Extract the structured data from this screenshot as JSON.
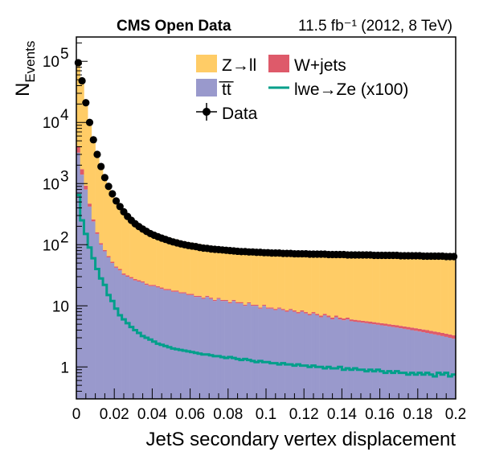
{
  "chart_data": {
    "type": "bar",
    "title_left": "CMS Open Data",
    "title_right": "11.5 fb⁻¹ (2012, 8 TeV)",
    "xlabel": "JetS secondary vertex displacement",
    "ylabel_main": "N",
    "ylabel_sub": "Events",
    "xlim": [
      0,
      0.2
    ],
    "ylim": [
      0.3,
      250000
    ],
    "yscale": "log",
    "x_ticks": [
      "0",
      "0.02",
      "0.04",
      "0.06",
      "0.08",
      "0.1",
      "0.12",
      "0.14",
      "0.16",
      "0.18",
      "0.2"
    ],
    "y_ticks": [
      {
        "value": 100000,
        "base": "10",
        "exp": "5"
      },
      {
        "value": 10000,
        "base": "10",
        "exp": "4"
      },
      {
        "value": 1000,
        "base": "10",
        "exp": "3"
      },
      {
        "value": 100,
        "base": "10",
        "exp": "2"
      },
      {
        "value": 10,
        "base": "10",
        "exp": ""
      },
      {
        "value": 1,
        "base": "1",
        "exp": ""
      }
    ],
    "n_bins": 100,
    "legend": {
      "placement": "top-right",
      "entries": [
        {
          "label": "Z→ll",
          "kind": "fill",
          "color": "#ffcc66"
        },
        {
          "label": "W+jets",
          "kind": "fill",
          "color": "#de5a6a"
        },
        {
          "label": "t̅t̅",
          "kind": "fill",
          "color": "#9999cc"
        },
        {
          "label": "lwe→Ze (x100)",
          "kind": "line",
          "color": "#009f8a"
        },
        {
          "label": "Data",
          "kind": "marker",
          "color": "#000000"
        }
      ]
    },
    "series": [
      {
        "name": "t̅t̅",
        "role": "stack",
        "color": "#9999cc",
        "values": [
          3200,
          1400,
          800,
          420,
          240,
          150,
          100,
          78,
          62,
          50,
          42,
          38,
          32,
          30,
          28,
          26,
          25,
          24,
          22,
          21,
          21,
          20,
          19,
          18,
          18,
          17,
          17,
          16,
          16,
          15,
          15,
          14,
          14,
          13,
          14,
          13,
          12,
          13,
          12,
          12,
          11,
          12,
          11,
          11,
          10,
          11,
          10,
          10,
          9,
          10,
          9,
          9,
          8.5,
          9,
          8.5,
          8,
          8.5,
          8,
          7.5,
          8,
          7.5,
          7,
          7.5,
          7,
          6.5,
          7,
          6.5,
          6,
          6.5,
          6,
          5.8,
          6,
          5.6,
          5.5,
          5.4,
          5.3,
          5.2,
          5.1,
          5,
          4.9,
          4.8,
          4.7,
          4.6,
          4.5,
          4.4,
          4.3,
          4.2,
          4.1,
          4,
          3.9,
          3.8,
          3.7,
          3.6,
          3.5,
          3.4,
          3.3,
          3.2,
          3.1,
          3,
          2.9
        ]
      },
      {
        "name": "W+jets",
        "role": "stack",
        "color": "#de5a6a",
        "values": [
          900,
          320,
          120,
          50,
          20,
          10,
          6,
          4,
          3,
          2.5,
          2,
          2,
          1.8,
          1.6,
          1.5,
          1.4,
          1.3,
          1.2,
          1.1,
          1,
          1,
          1,
          0.9,
          0.9,
          0.8,
          0.8,
          0.8,
          0.7,
          0.7,
          0.7,
          0.7,
          0.6,
          0.6,
          0.6,
          0.6,
          0.6,
          0.5,
          0.5,
          0.5,
          0.5,
          0.5,
          0.5,
          0.5,
          0.5,
          0.4,
          0.4,
          0.4,
          0.4,
          0.4,
          0.4,
          0.4,
          0.4,
          0.4,
          0.4,
          0.4,
          0.4,
          0.4,
          0.4,
          0.4,
          0.4,
          0.4,
          0.4,
          0.4,
          0.4,
          0.4,
          0.4,
          0.4,
          0.4,
          0.4,
          0.4,
          0.4,
          0.4,
          0.4,
          0.4,
          0.4,
          0.4,
          0.4,
          0.4,
          0.4,
          0.4,
          0.4,
          0.4,
          0.4,
          0.4,
          0.4,
          0.4,
          0.4,
          0.4,
          0.4,
          0.4,
          0.4,
          0.4,
          0.4,
          0.4,
          0.4,
          0.4,
          0.4,
          0.4,
          0.4,
          0.4
        ]
      },
      {
        "name": "Z→ll",
        "role": "stack",
        "color": "#ffcc66",
        "values": [
          85000,
          48000,
          20000,
          9500,
          5000,
          2900,
          1800,
          1200,
          860,
          640,
          500,
          400,
          330,
          280,
          240,
          210,
          190,
          172,
          158,
          146,
          138,
          130,
          124,
          118,
          112,
          108,
          104,
          100,
          97,
          94,
          92,
          90,
          88,
          86,
          84,
          82,
          81,
          80,
          79,
          78,
          77,
          76,
          75,
          74,
          74,
          73,
          73,
          72,
          72,
          71,
          71,
          70,
          70,
          70,
          69,
          69,
          69,
          68,
          68,
          68,
          68,
          67,
          67,
          67,
          67,
          67,
          66,
          66,
          66,
          66,
          66,
          65,
          65,
          65,
          65,
          65,
          65,
          65,
          64,
          64,
          64,
          64,
          64,
          64,
          64,
          63,
          63,
          63,
          63,
          63,
          63,
          62,
          62,
          62,
          62,
          62,
          62,
          61,
          61,
          61
        ]
      },
      {
        "name": "lwe→Ze (x100)",
        "role": "line",
        "color": "#009f8a",
        "values": [
          650,
          250,
          150,
          90,
          60,
          40,
          28,
          22,
          15,
          12,
          9,
          7,
          6,
          5.2,
          4.5,
          4,
          3.6,
          3.2,
          3,
          2.8,
          2.6,
          2.4,
          2.3,
          2.2,
          2.1,
          2,
          1.95,
          1.9,
          1.85,
          1.8,
          1.75,
          1.7,
          1.65,
          1.6,
          1.6,
          1.55,
          1.5,
          1.5,
          1.45,
          1.4,
          1.45,
          1.4,
          1.35,
          1.3,
          1.35,
          1.3,
          1.25,
          1.2,
          1.25,
          1.2,
          1.2,
          1.15,
          1.15,
          1.1,
          1.15,
          1.1,
          1.1,
          1.05,
          1.1,
          1.05,
          1.05,
          1,
          1.05,
          1,
          1,
          0.95,
          1,
          0.95,
          0.95,
          1,
          0.9,
          0.95,
          0.9,
          0.95,
          0.9,
          0.9,
          0.85,
          0.9,
          0.85,
          0.9,
          0.85,
          0.8,
          0.85,
          0.8,
          0.85,
          0.8,
          0.8,
          0.75,
          0.8,
          0.75,
          0.8,
          0.75,
          0.8,
          0.75,
          0.7,
          0.8,
          0.75,
          0.8,
          0.7,
          0.75
        ]
      },
      {
        "name": "Data",
        "role": "points",
        "color": "#000000",
        "values": [
          95000,
          48000,
          21000,
          10000,
          5200,
          3000,
          1900,
          1250,
          900,
          680,
          520,
          420,
          345,
          290,
          250,
          220,
          198,
          180,
          165,
          152,
          143,
          135,
          128,
          122,
          116,
          111,
          107,
          103,
          100,
          97,
          95,
          93,
          90,
          88,
          87,
          85,
          84,
          83,
          82,
          81,
          80,
          79,
          78,
          77,
          77,
          76,
          76,
          75,
          75,
          74,
          74,
          73,
          73,
          73,
          72,
          72,
          72,
          71,
          71,
          71,
          71,
          70,
          70,
          70,
          70,
          70,
          69,
          69,
          69,
          69,
          69,
          68,
          68,
          68,
          68,
          68,
          68,
          68,
          67,
          67,
          67,
          67,
          67,
          67,
          67,
          66,
          66,
          66,
          66,
          66,
          66,
          65,
          65,
          65,
          65,
          65,
          65,
          64,
          64,
          64
        ]
      }
    ]
  }
}
